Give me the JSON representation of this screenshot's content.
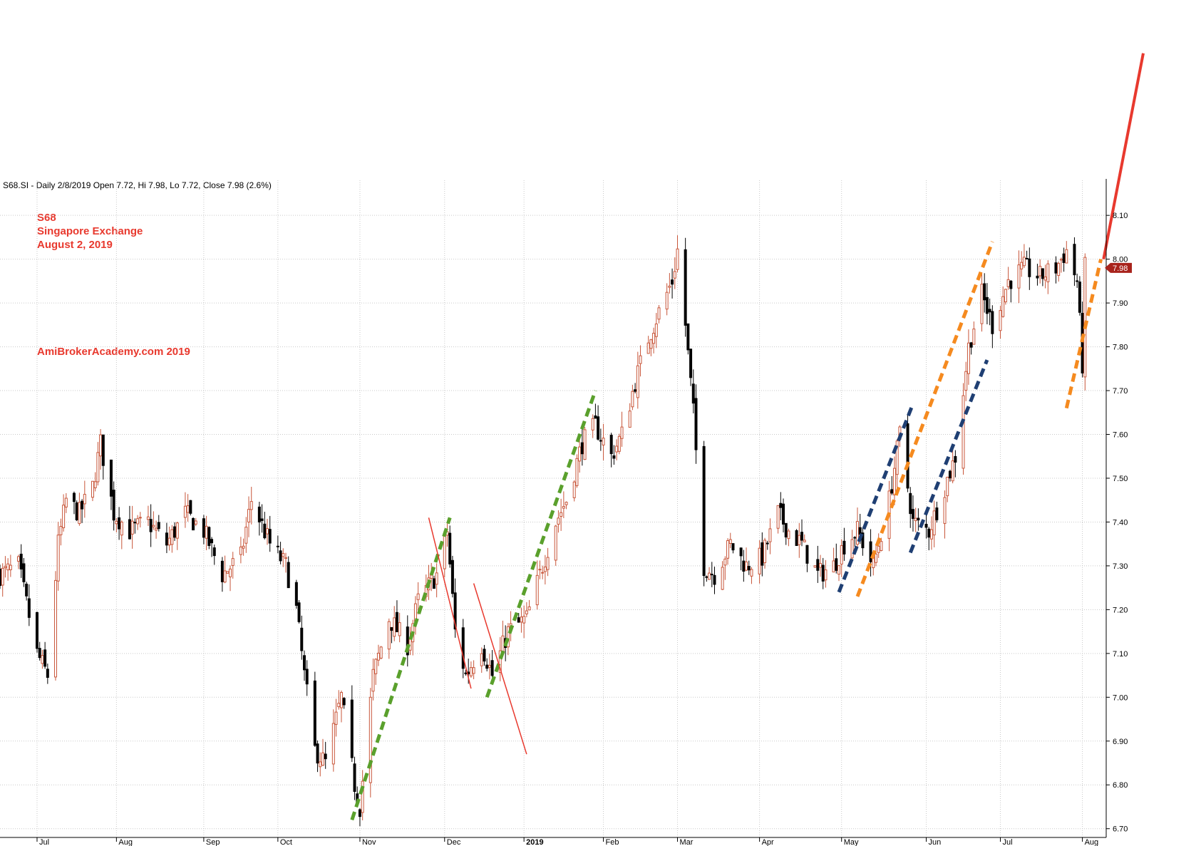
{
  "header_text": "S68.SI - Daily 2/8/2019 Open 7.72, Hi 7.98, Lo 7.72, Close 7.98 (2.6%)",
  "annotations": {
    "symbol": "S68",
    "name": "Singapore Exchange",
    "date": "August 2, 2019",
    "site": "AmiBrokerAcademy.com   2019"
  },
  "colors": {
    "up_candle": "#c8563a",
    "down_candle": "#000000",
    "grid": "#c9c9c9",
    "annotation_text": "#e8392e",
    "price_marker": "#a8231c",
    "trend_green": "#5aa02c",
    "trend_red": "#e8392e",
    "trend_blue": "#1f3f73",
    "trend_orange": "#f58a1f"
  },
  "chart_data": {
    "type": "candlestick",
    "symbol": "S68.SI",
    "interval": "Daily",
    "ylim": [
      6.68,
      8.18
    ],
    "y_ticks": [
      6.7,
      6.8,
      6.9,
      7.0,
      7.1,
      7.2,
      7.3,
      7.4,
      7.5,
      7.6,
      7.7,
      7.8,
      7.9,
      8.0,
      8.1
    ],
    "y_tick_labels": [
      "6.70",
      "6.80",
      "6.90",
      "7.00",
      "7.10",
      "7.20",
      "7.30",
      "7.40",
      "7.50",
      "7.60",
      "7.70",
      "7.80",
      "7.90",
      "8.00",
      "8.10"
    ],
    "x_range": [
      "2018-06-18",
      "2019-08-10"
    ],
    "x_ticks": [
      {
        "date": "2018-07-02",
        "label": "Jul"
      },
      {
        "date": "2018-08-01",
        "label": "Aug"
      },
      {
        "date": "2018-09-03",
        "label": "Sep"
      },
      {
        "date": "2018-10-01",
        "label": "Oct"
      },
      {
        "date": "2018-11-01",
        "label": "Nov"
      },
      {
        "date": "2018-12-03",
        "label": "Dec"
      },
      {
        "date": "2019-01-02",
        "label": "2019",
        "bold": true
      },
      {
        "date": "2019-02-01",
        "label": "Feb"
      },
      {
        "date": "2019-03-01",
        "label": "Mar"
      },
      {
        "date": "2019-04-01",
        "label": "Apr"
      },
      {
        "date": "2019-05-02",
        "label": "May"
      },
      {
        "date": "2019-06-03",
        "label": "Jun"
      },
      {
        "date": "2019-07-01",
        "label": "Jul"
      },
      {
        "date": "2019-08-01",
        "label": "Aug"
      }
    ],
    "last_price": 7.98,
    "last_price_label": "7.98",
    "close_path": [
      [
        "2018-06-18",
        7.28
      ],
      [
        "2018-06-25",
        7.3
      ],
      [
        "2018-07-02",
        7.1
      ],
      [
        "2018-07-06",
        7.05
      ],
      [
        "2018-07-10",
        7.35
      ],
      [
        "2018-07-13",
        7.45
      ],
      [
        "2018-07-18",
        7.42
      ],
      [
        "2018-07-23",
        7.48
      ],
      [
        "2018-07-26",
        7.58
      ],
      [
        "2018-07-31",
        7.42
      ],
      [
        "2018-08-06",
        7.38
      ],
      [
        "2018-08-13",
        7.4
      ],
      [
        "2018-08-20",
        7.35
      ],
      [
        "2018-08-27",
        7.42
      ],
      [
        "2018-09-03",
        7.38
      ],
      [
        "2018-09-10",
        7.28
      ],
      [
        "2018-09-17",
        7.32
      ],
      [
        "2018-09-21",
        7.45
      ],
      [
        "2018-09-28",
        7.35
      ],
      [
        "2018-10-04",
        7.3
      ],
      [
        "2018-10-08",
        7.2
      ],
      [
        "2018-10-11",
        7.05
      ],
      [
        "2018-10-15",
        6.88
      ],
      [
        "2018-10-19",
        6.85
      ],
      [
        "2018-10-25",
        7.0
      ],
      [
        "2018-10-30",
        6.8
      ],
      [
        "2018-11-01",
        6.75
      ],
      [
        "2018-11-06",
        7.05
      ],
      [
        "2018-11-12",
        7.18
      ],
      [
        "2018-11-19",
        7.12
      ],
      [
        "2018-11-23",
        7.22
      ],
      [
        "2018-11-30",
        7.28
      ],
      [
        "2018-12-04",
        7.38
      ],
      [
        "2018-12-07",
        7.15
      ],
      [
        "2018-12-11",
        7.05
      ],
      [
        "2018-12-17",
        7.12
      ],
      [
        "2018-12-21",
        7.05
      ],
      [
        "2018-12-27",
        7.15
      ],
      [
        "2019-01-03",
        7.18
      ],
      [
        "2019-01-09",
        7.3
      ],
      [
        "2019-01-14",
        7.4
      ],
      [
        "2019-01-18",
        7.45
      ],
      [
        "2019-01-24",
        7.58
      ],
      [
        "2019-01-29",
        7.62
      ],
      [
        "2019-02-04",
        7.55
      ],
      [
        "2019-02-08",
        7.6
      ],
      [
        "2019-02-13",
        7.72
      ],
      [
        "2019-02-18",
        7.82
      ],
      [
        "2019-02-22",
        7.88
      ],
      [
        "2019-02-27",
        7.95
      ],
      [
        "2019-03-01",
        8.02
      ],
      [
        "2019-03-04",
        7.85
      ],
      [
        "2019-03-07",
        7.65
      ],
      [
        "2019-03-11",
        7.3
      ],
      [
        "2019-03-15",
        7.28
      ],
      [
        "2019-03-21",
        7.35
      ],
      [
        "2019-03-27",
        7.3
      ],
      [
        "2019-04-02",
        7.32
      ],
      [
        "2019-04-08",
        7.42
      ],
      [
        "2019-04-12",
        7.38
      ],
      [
        "2019-04-17",
        7.35
      ],
      [
        "2019-04-23",
        7.28
      ],
      [
        "2019-04-29",
        7.3
      ],
      [
        "2019-05-03",
        7.35
      ],
      [
        "2019-05-08",
        7.38
      ],
      [
        "2019-05-14",
        7.3
      ],
      [
        "2019-05-20",
        7.45
      ],
      [
        "2019-05-24",
        7.6
      ],
      [
        "2019-05-29",
        7.4
      ],
      [
        "2019-06-04",
        7.38
      ],
      [
        "2019-06-10",
        7.48
      ],
      [
        "2019-06-14",
        7.55
      ],
      [
        "2019-06-19",
        7.8
      ],
      [
        "2019-06-24",
        7.92
      ],
      [
        "2019-06-28",
        7.85
      ],
      [
        "2019-07-04",
        7.95
      ],
      [
        "2019-07-10",
        7.98
      ],
      [
        "2019-07-16",
        7.96
      ],
      [
        "2019-07-22",
        7.98
      ],
      [
        "2019-07-26",
        8.02
      ],
      [
        "2019-07-30",
        7.95
      ],
      [
        "2019-08-01",
        7.76
      ],
      [
        "2019-08-02",
        7.98
      ]
    ],
    "trend_lines": [
      {
        "color": "green",
        "style": "dashed",
        "from": [
          "2018-10-29",
          6.72
        ],
        "to": [
          "2018-12-05",
          7.41
        ]
      },
      {
        "color": "green",
        "style": "dashed",
        "from": [
          "2018-12-19",
          7.0
        ],
        "to": [
          "2019-01-29",
          7.7
        ]
      },
      {
        "color": "red",
        "style": "solid",
        "from": [
          "2018-11-27",
          7.41
        ],
        "to": [
          "2018-12-13",
          7.02
        ]
      },
      {
        "color": "red",
        "style": "solid",
        "from": [
          "2018-12-14",
          7.26
        ],
        "to": [
          "2019-01-03",
          6.87
        ]
      },
      {
        "color": "blue",
        "style": "dashed",
        "from": [
          "2019-05-01",
          7.24
        ],
        "to": [
          "2019-05-29",
          7.67
        ]
      },
      {
        "color": "blue",
        "style": "dashed",
        "from": [
          "2019-05-28",
          7.33
        ],
        "to": [
          "2019-06-26",
          7.77
        ]
      },
      {
        "color": "orange",
        "style": "dashed",
        "from": [
          "2019-05-08",
          7.23
        ],
        "to": [
          "2019-06-28",
          8.04
        ]
      },
      {
        "color": "orange",
        "style": "dashed",
        "from": [
          "2019-07-26",
          7.66
        ],
        "to": [
          "2019-08-08",
          8.0
        ]
      },
      {
        "color": "red",
        "style": "solid",
        "from": [
          "2019-08-09",
          8.0
        ],
        "to": [
          "2019-08-24",
          8.47
        ]
      }
    ]
  }
}
